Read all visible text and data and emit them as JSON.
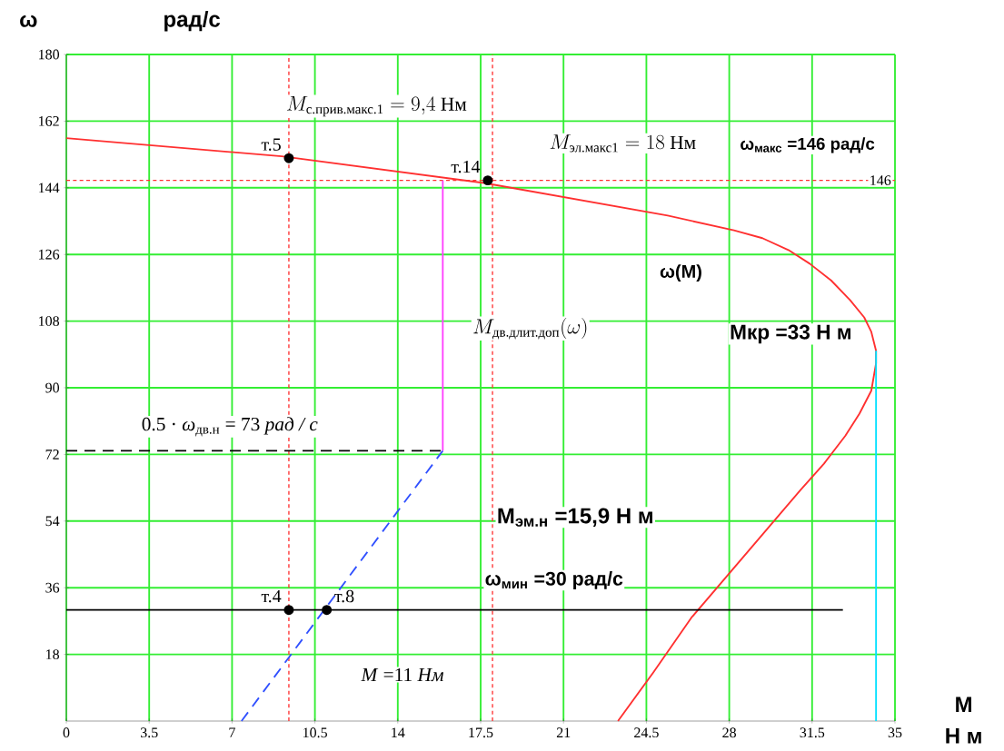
{
  "chart_data": {
    "type": "line",
    "xlabel": "M",
    "ylabel": "ω",
    "xlim": [
      0,
      35
    ],
    "ylim": [
      0,
      180
    ],
    "xticks": [
      0,
      3.5,
      7,
      10.5,
      14,
      17.5,
      21,
      24.5,
      28,
      31.5,
      35
    ],
    "yticks": [
      18,
      36,
      54,
      72,
      90,
      108,
      126,
      144,
      162,
      180
    ],
    "grid": true,
    "series": [
      {
        "name": "ω(M)",
        "color": "#ff3030",
        "line_style": "solid",
        "x": [
          0,
          9.1,
          17.65,
          25.4,
          28.2,
          29.4,
          30.5,
          31.4,
          32.3,
          33.1,
          33.7,
          34.0,
          34.2,
          34.2,
          34.0,
          33.5,
          32.9,
          32.0,
          31.0,
          28.7,
          26.4,
          24.8,
          23.3
        ],
        "values": [
          157.4,
          152.5,
          145.3,
          136.5,
          132.5,
          130.4,
          127.2,
          123.5,
          119,
          113.7,
          109,
          105.1,
          100,
          96.6,
          89.2,
          83,
          77,
          69.5,
          62.3,
          45.1,
          27.9,
          13.2,
          0
        ]
      },
      {
        "color": "#3050ff",
        "line_style": "dashed",
        "x": [
          7.4,
          15.9
        ],
        "values": [
          0,
          73
        ]
      },
      {
        "name": "M_{\\text{дв.длит.доп}}(\\omega)",
        "type": "line",
        "color": "#ff40ff",
        "line_style": "solid",
        "x": [
          15.9,
          15.9
        ],
        "values": [
          73,
          146
        ]
      },
      {
        "type": "line",
        "color": "#00e0ff",
        "line_style": "solid",
        "x": [
          34.2,
          34.2
        ],
        "values": [
          0,
          100
        ]
      },
      {
        "name": "0.5 · *ω*$_{дв.н}$ = 73 *рад / с*",
        "type": "line",
        "color": "#000000",
        "line_style": "dashed",
        "x": [
          0,
          15.9
        ],
        "values": [
          73,
          73
        ]
      },
      {
        "name": "ω$_{мин}$ =30 рад/с",
        "type": "line",
        "color": "#000000",
        "line_style": "solid",
        "x": [
          0,
          32.8
        ],
        "values": [
          30,
          30
        ]
      },
      {
        "type": "scatter",
        "color": "#000000",
        "x": [
          9.4,
          17.8,
          9.4,
          11
        ],
        "values": [
          152,
          146,
          30,
          30
        ]
      }
    ],
    "ref_lines": [
      {
        "axis": "x",
        "value": 9.4,
        "color": "#ff3030",
        "line_style": "dashed"
      },
      {
        "axis": "x",
        "value": 18,
        "color": "#ff3030",
        "line_style": "dashed"
      },
      {
        "axis": "y",
        "value": 146,
        "color": "#ff3030",
        "line_style": "dashed",
        "label": "146"
      }
    ],
    "annotations": [
      "рад/с",
      "Н м",
      "M_{\\text{с.прив.макс.1}} = 9{,}4\\ \\text{Нм}",
      "M_{\\text{эл.макс1}} = 18\\ \\text{Нм}",
      "ω$_{макс}$ =146 рад/с",
      "Мкр =33 Н м",
      "М$_{эм.н}$ =15,9 Н м",
      "*M* =11 *Нм*",
      {
        "text": "т.5",
        "x": 9.4,
        "y": 152
      },
      {
        "text": "т.14",
        "x": 17.8,
        "y": 146
      },
      {
        "text": "т.4",
        "x": 9.4,
        "y": 30
      },
      {
        "text": "т.8",
        "x": 11,
        "y": 30
      }
    ]
  }
}
